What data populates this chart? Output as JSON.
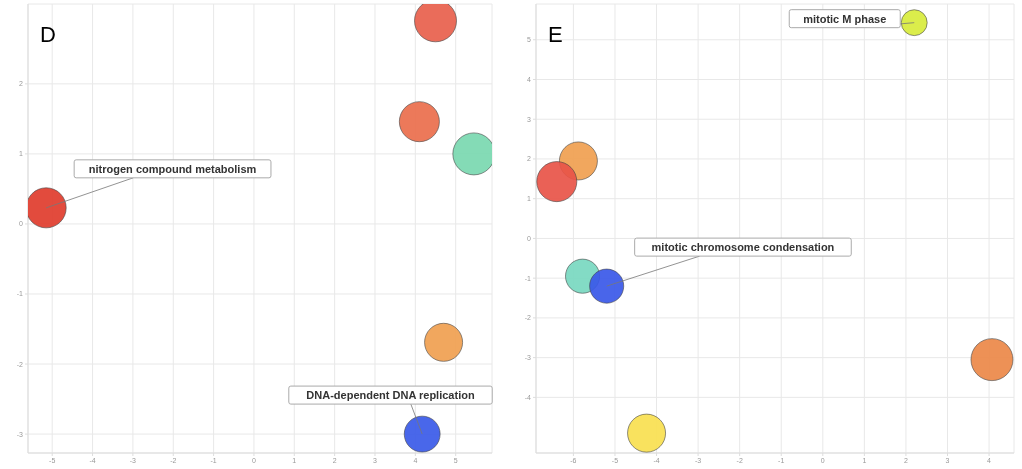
{
  "chart_data": [
    {
      "type": "bubble",
      "title": "D",
      "x": [
        4.5,
        4.1,
        5.45,
        -5.15,
        4.7,
        4.17
      ],
      "values": [
        2.9,
        1.46,
        1.0,
        0.23,
        -1.69,
        -3.0
      ],
      "sizes": [
        1,
        0.91,
        1,
        0.91,
        0.82,
        0.73
      ],
      "colors": [
        "#e8604c",
        "#ea6e4c",
        "#7ad8b0",
        "#e03c2c",
        "#f0a050",
        "#3a5ae8"
      ],
      "xlim": [
        -5.6,
        5.9
      ],
      "ylim": [
        -3.27,
        3.14
      ],
      "xticks": [
        -5,
        -4,
        -3,
        -2,
        -1,
        0,
        1,
        2,
        3,
        4,
        5
      ],
      "yticks": [
        -3,
        -2,
        -1,
        0,
        1,
        2
      ],
      "grid": true,
      "annotations": [
        {
          "text": "nitrogen compound metabolism",
          "x": -5.15,
          "y": 0.23
        },
        {
          "text": "DNA-dependent DNA replication",
          "x": 4.17,
          "y": -3.0
        }
      ]
    },
    {
      "type": "bubble",
      "title": "E",
      "x": [
        2.2,
        -5.88,
        -6.4,
        -5.78,
        -5.2,
        -4.24,
        4.07
      ],
      "values": [
        5.43,
        1.95,
        1.43,
        -0.95,
        -1.2,
        -4.9,
        -3.05
      ],
      "sizes": [
        0.38,
        0.82,
        0.91,
        0.66,
        0.66,
        0.82,
        1
      ],
      "colors": [
        "#d8ec3c",
        "#f0a050",
        "#e85448",
        "#78d8c0",
        "#3a58e8",
        "#f8e050",
        "#ec8848"
      ],
      "xlim": [
        -6.9,
        4.6
      ],
      "ylim": [
        -5.4,
        5.9
      ],
      "xticks": [
        -6,
        -5,
        -4,
        -3,
        -2,
        -1,
        0,
        1,
        2,
        3,
        4
      ],
      "yticks": [
        -4,
        -3,
        -2,
        -1,
        0,
        1,
        2,
        3,
        4,
        5
      ],
      "grid": true,
      "annotations": [
        {
          "text": "mitotic chromosome condensation",
          "x": -5.2,
          "y": -1.2
        },
        {
          "text": "mitotic M phase",
          "x": 2.2,
          "y": 5.43
        }
      ]
    }
  ]
}
